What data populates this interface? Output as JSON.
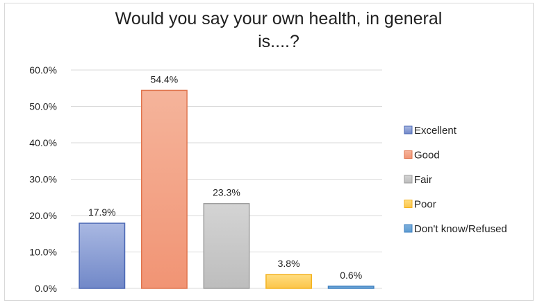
{
  "chart_data": {
    "type": "bar",
    "title_lines": [
      "Would you say your own health, in general",
      "is....?"
    ],
    "categories": [
      "Excellent",
      "Good",
      "Fair",
      "Poor",
      "Don't know/Refused"
    ],
    "values": [
      17.9,
      54.4,
      23.3,
      3.8,
      0.6
    ],
    "data_labels": [
      "17.9%",
      "54.4%",
      "23.3%",
      "3.8%",
      "0.6%"
    ],
    "colors": [
      {
        "fill_top": "#a9b8e2",
        "fill_bottom": "#7188c8",
        "stroke": "#4a67b4"
      },
      {
        "fill_top": "#f5b49b",
        "fill_bottom": "#f19474",
        "stroke": "#e0744d"
      },
      {
        "fill_top": "#d4d4d4",
        "fill_bottom": "#bdbdbd",
        "stroke": "#9e9e9e"
      },
      {
        "fill_top": "#ffdd80",
        "fill_bottom": "#fbc54a",
        "stroke": "#f3b21f"
      },
      {
        "fill_top": "#7fb0dc",
        "fill_bottom": "#5c9bd2",
        "stroke": "#3f81c0"
      }
    ],
    "y_ticks": [
      "0.0%",
      "10.0%",
      "20.0%",
      "30.0%",
      "40.0%",
      "50.0%",
      "60.0%"
    ],
    "ylim": [
      0,
      60
    ],
    "grid": true,
    "legend": {
      "position": "right",
      "entries": [
        "Excellent",
        "Good",
        "Fair",
        "Poor",
        "Don't know/Refused"
      ]
    }
  }
}
